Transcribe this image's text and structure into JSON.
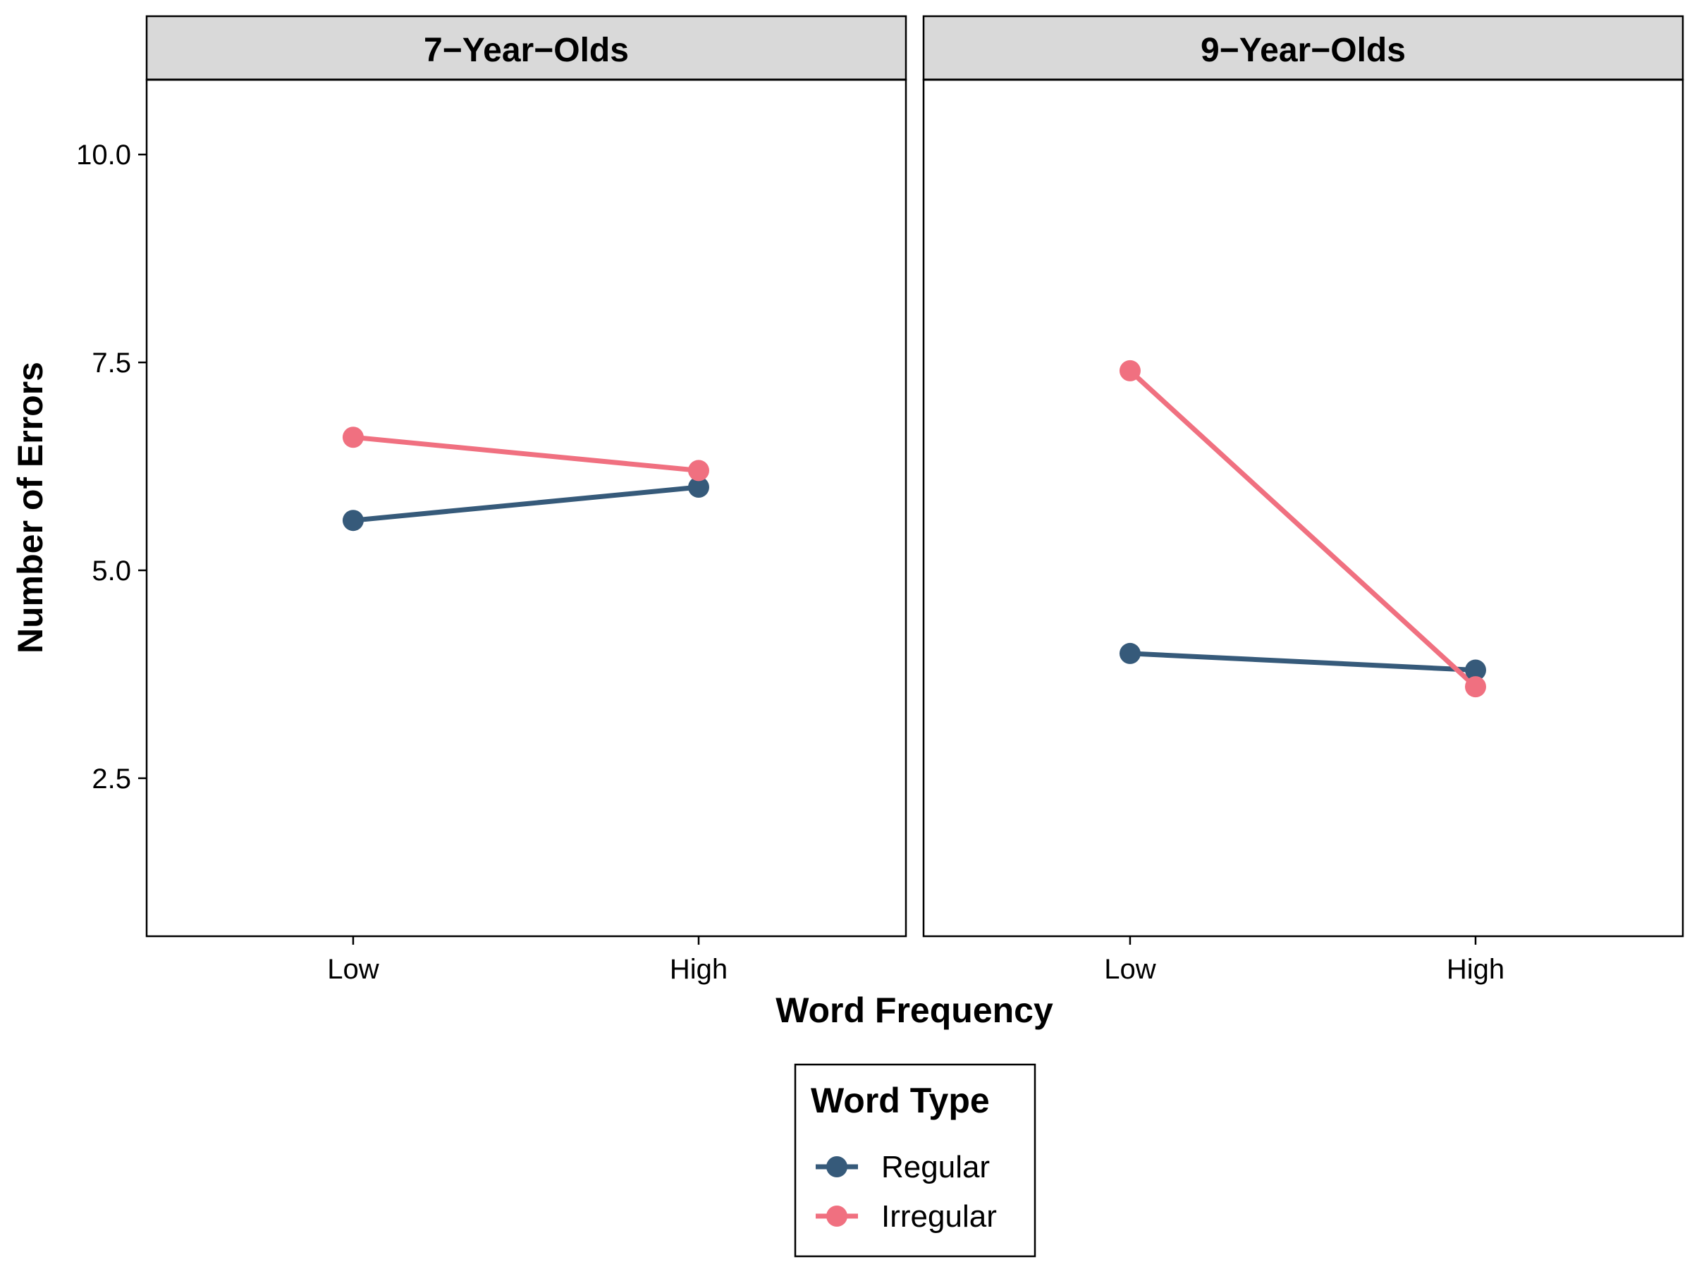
{
  "chart_data": {
    "type": "line",
    "xlabel": "Word Frequency",
    "ylabel": "Number of Errors",
    "categories": [
      "Low",
      "High"
    ],
    "ylim": [
      0.6,
      10.9
    ],
    "yticks": [
      "2.5",
      "5.0",
      "7.5",
      "10.0"
    ],
    "grid": false,
    "legend": {
      "title": "Word Type",
      "position": "bottom",
      "entries": [
        "Regular",
        "Irregular"
      ]
    },
    "colors": {
      "Regular": "#365a7a",
      "Irregular": "#f07080"
    },
    "panels": [
      {
        "title": "7−Year−Olds",
        "series": [
          {
            "name": "Regular",
            "values": [
              5.6,
              6.0
            ]
          },
          {
            "name": "Irregular",
            "values": [
              6.6,
              6.2
            ]
          }
        ]
      },
      {
        "title": "9−Year−Olds",
        "series": [
          {
            "name": "Regular",
            "values": [
              4.0,
              3.8
            ]
          },
          {
            "name": "Irregular",
            "values": [
              7.4,
              3.6
            ]
          }
        ]
      }
    ]
  }
}
